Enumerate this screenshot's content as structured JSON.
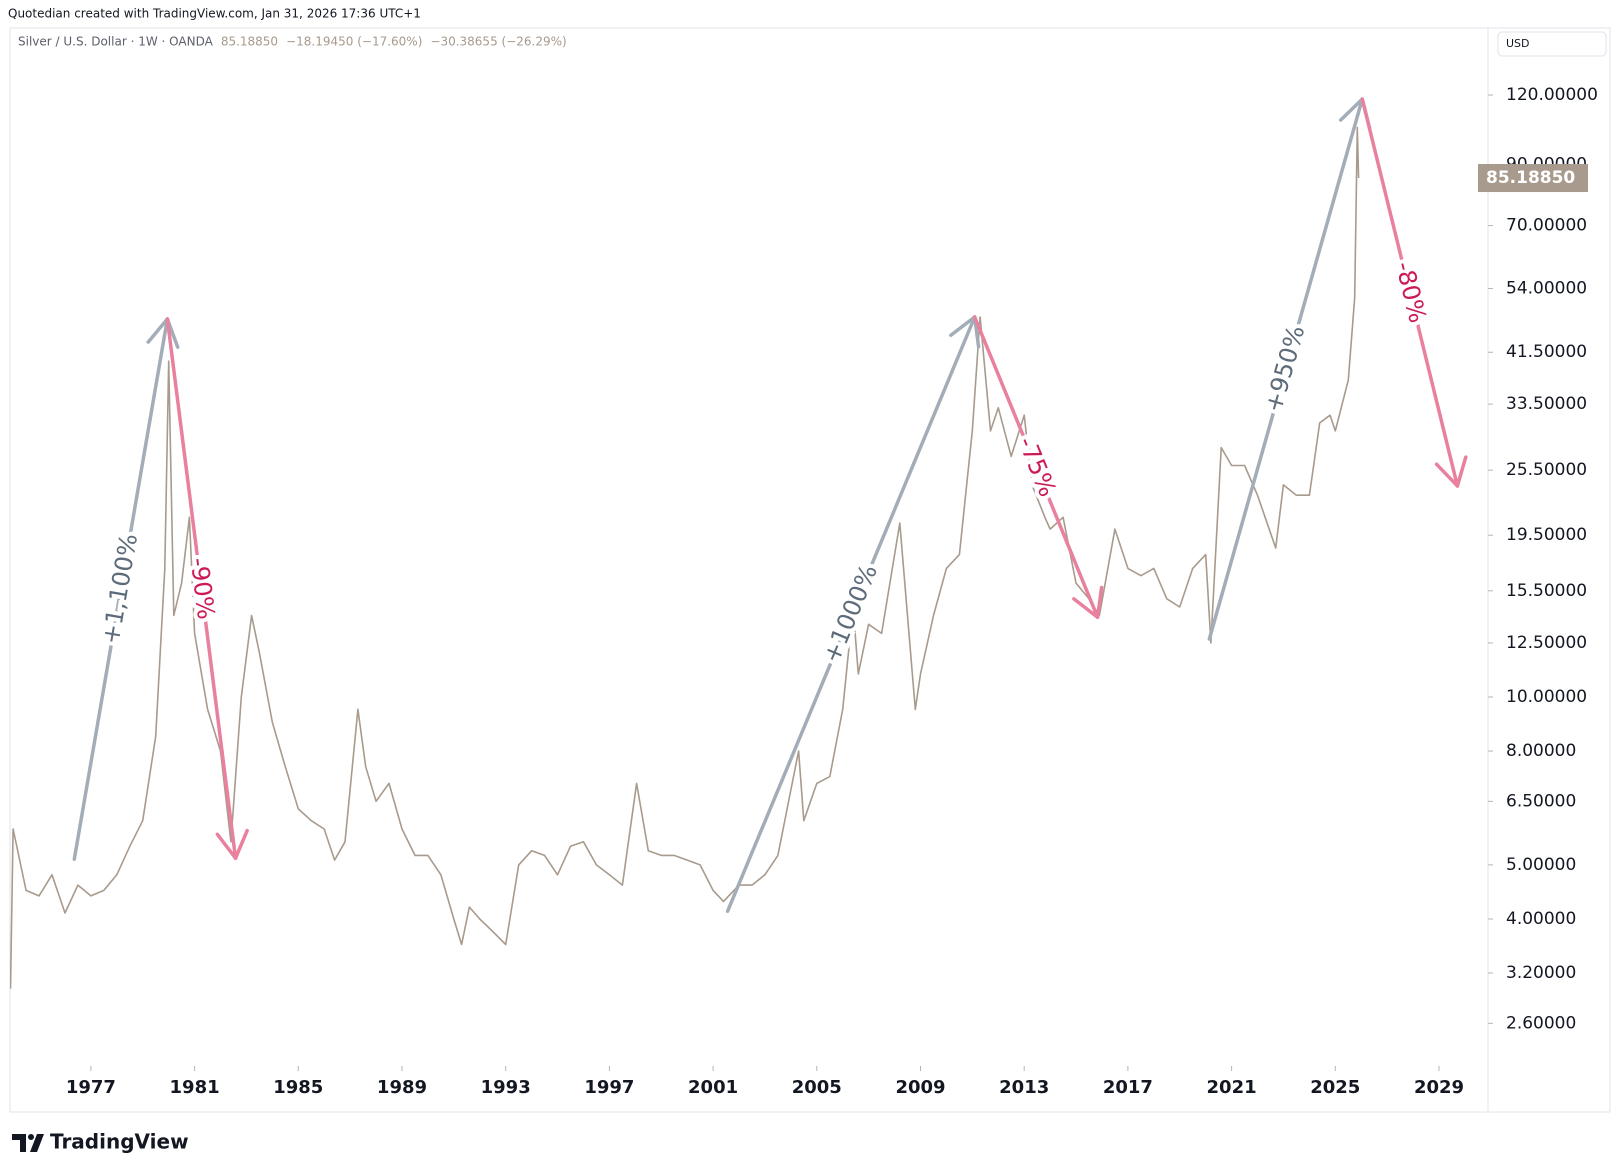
{
  "page_header": "Quotedian created with TradingView.com, Jan 31, 2026 17:36 UTC+1",
  "brand": "TradingView",
  "chart_data": {
    "type": "line",
    "symbol": "Silver / U.S. Dollar · 1W · OANDA",
    "last_price": {
      "value": 85.1885,
      "label": "85.18850"
    },
    "change_1": "−18.19450 (−17.60%)",
    "change_2": "−30.38655 (−26.29%)",
    "currency": "USD",
    "log_scale": true,
    "grid": false,
    "xlim": [
      1973.88,
      2030.89
    ],
    "ylim": [
      2.18,
      156.3
    ],
    "xticks": [
      1977,
      1981,
      1985,
      1989,
      1993,
      1997,
      2001,
      2005,
      2009,
      2013,
      2017,
      2021,
      2025,
      2029
    ],
    "yticks": [
      {
        "value": 120,
        "label": "120.00000"
      },
      {
        "value": 90,
        "label": "90.00000"
      },
      {
        "value": 70,
        "label": "70.00000"
      },
      {
        "value": 54,
        "label": "54.00000"
      },
      {
        "value": 41.5,
        "label": "41.50000"
      },
      {
        "value": 33.5,
        "label": "33.50000"
      },
      {
        "value": 25.5,
        "label": "25.50000"
      },
      {
        "value": 19.5,
        "label": "19.50000"
      },
      {
        "value": 15.5,
        "label": "15.50000"
      },
      {
        "value": 12.5,
        "label": "12.50000"
      },
      {
        "value": 10,
        "label": "10.00000"
      },
      {
        "value": 8,
        "label": "8.00000"
      },
      {
        "value": 6.5,
        "label": "6.50000"
      },
      {
        "value": 5,
        "label": "5.00000"
      },
      {
        "value": 4,
        "label": "4.00000"
      },
      {
        "value": 3.2,
        "label": "3.20000"
      },
      {
        "value": 2.6,
        "label": "2.60000"
      }
    ],
    "series": [
      {
        "name": "Silver / U.S. Dollar",
        "color": "#a89a8c",
        "x": [
          1973.9,
          1974.0,
          1974.5,
          1975,
          1975.5,
          1976,
          1976.5,
          1977,
          1977.5,
          1978,
          1978.5,
          1979,
          1979.5,
          1979.85,
          1980.0,
          1980.2,
          1980.5,
          1980.8,
          1981,
          1981.5,
          1982,
          1982.4,
          1982.8,
          1983.2,
          1983.5,
          1984,
          1984.5,
          1985,
          1985.5,
          1986,
          1986.4,
          1986.8,
          1987.3,
          1987.6,
          1988,
          1988.5,
          1989,
          1989.5,
          1990,
          1990.5,
          1991,
          1991.3,
          1991.6,
          1992,
          1992.5,
          1993,
          1993.5,
          1994,
          1994.5,
          1995,
          1995.5,
          1996,
          1996.5,
          1997,
          1997.5,
          1998.05,
          1998.5,
          1999,
          1999.5,
          2000,
          2000.5,
          2001,
          2001.4,
          2002,
          2002.5,
          2003,
          2003.5,
          2004.3,
          2004.5,
          2005,
          2005.5,
          2006,
          2006.4,
          2006.6,
          2007,
          2007.5,
          2008.2,
          2008.8,
          2009,
          2009.5,
          2010,
          2010.5,
          2011,
          2011.3,
          2011.7,
          2012,
          2012.5,
          2013,
          2013.3,
          2013.8,
          2014,
          2014.5,
          2015,
          2015.5,
          2015.9,
          2016.5,
          2017,
          2017.5,
          2018,
          2018.5,
          2019,
          2019.5,
          2020,
          2020.2,
          2020.6,
          2021,
          2021.5,
          2022,
          2022.7,
          2023,
          2023.5,
          2024,
          2024.4,
          2024.8,
          2025,
          2025.5,
          2025.75,
          2025.85,
          2025.9
        ],
        "values": [
          3.0,
          5.8,
          4.5,
          4.4,
          4.8,
          4.1,
          4.6,
          4.4,
          4.5,
          4.8,
          5.4,
          6.0,
          8.5,
          17,
          40,
          14,
          16,
          21,
          13,
          9.5,
          8,
          5.5,
          10,
          14,
          12,
          9,
          7.5,
          6.3,
          6.0,
          5.8,
          5.1,
          5.5,
          9.5,
          7.5,
          6.5,
          7.0,
          5.8,
          5.2,
          5.2,
          4.8,
          4.0,
          3.6,
          4.2,
          4.0,
          3.8,
          3.6,
          5.0,
          5.3,
          5.2,
          4.8,
          5.4,
          5.5,
          5.0,
          4.8,
          4.6,
          7.0,
          5.3,
          5.2,
          5.2,
          5.1,
          5.0,
          4.5,
          4.3,
          4.6,
          4.6,
          4.8,
          5.2,
          8.0,
          6.0,
          7.0,
          7.2,
          9.5,
          14.5,
          11,
          13.5,
          13,
          20.5,
          9.5,
          11,
          14,
          17,
          18,
          30,
          48,
          30,
          33,
          27,
          32,
          24,
          21,
          20,
          21,
          16,
          15,
          14,
          20,
          17,
          16.5,
          17,
          15,
          14.5,
          17,
          18,
          12.5,
          28,
          26,
          26,
          23,
          18.5,
          24,
          23,
          23,
          31,
          32,
          30,
          37,
          52,
          105,
          85.1885
        ]
      }
    ],
    "annotations": [
      {
        "text": "+1,100%",
        "direction": "up",
        "from": [
          1976.36,
          5.12
        ],
        "to": [
          1979.95,
          47.6
        ]
      },
      {
        "text": "-90%",
        "direction": "down",
        "from": [
          1979.95,
          47.6
        ],
        "to": [
          1982.58,
          5.14
        ]
      },
      {
        "text": "+1000%",
        "direction": "up",
        "from": [
          2001.56,
          4.13
        ],
        "to": [
          2011.09,
          48
        ]
      },
      {
        "text": "-75%",
        "direction": "down",
        "from": [
          2011.09,
          48
        ],
        "to": [
          2015.83,
          13.9
        ]
      },
      {
        "text": "+950%",
        "direction": "up",
        "from": [
          2020.14,
          12.7
        ],
        "to": [
          2026.04,
          118
        ]
      },
      {
        "text": "-80%",
        "direction": "down",
        "from": [
          2026.04,
          118
        ],
        "to": [
          2029.71,
          23.9
        ]
      }
    ]
  }
}
